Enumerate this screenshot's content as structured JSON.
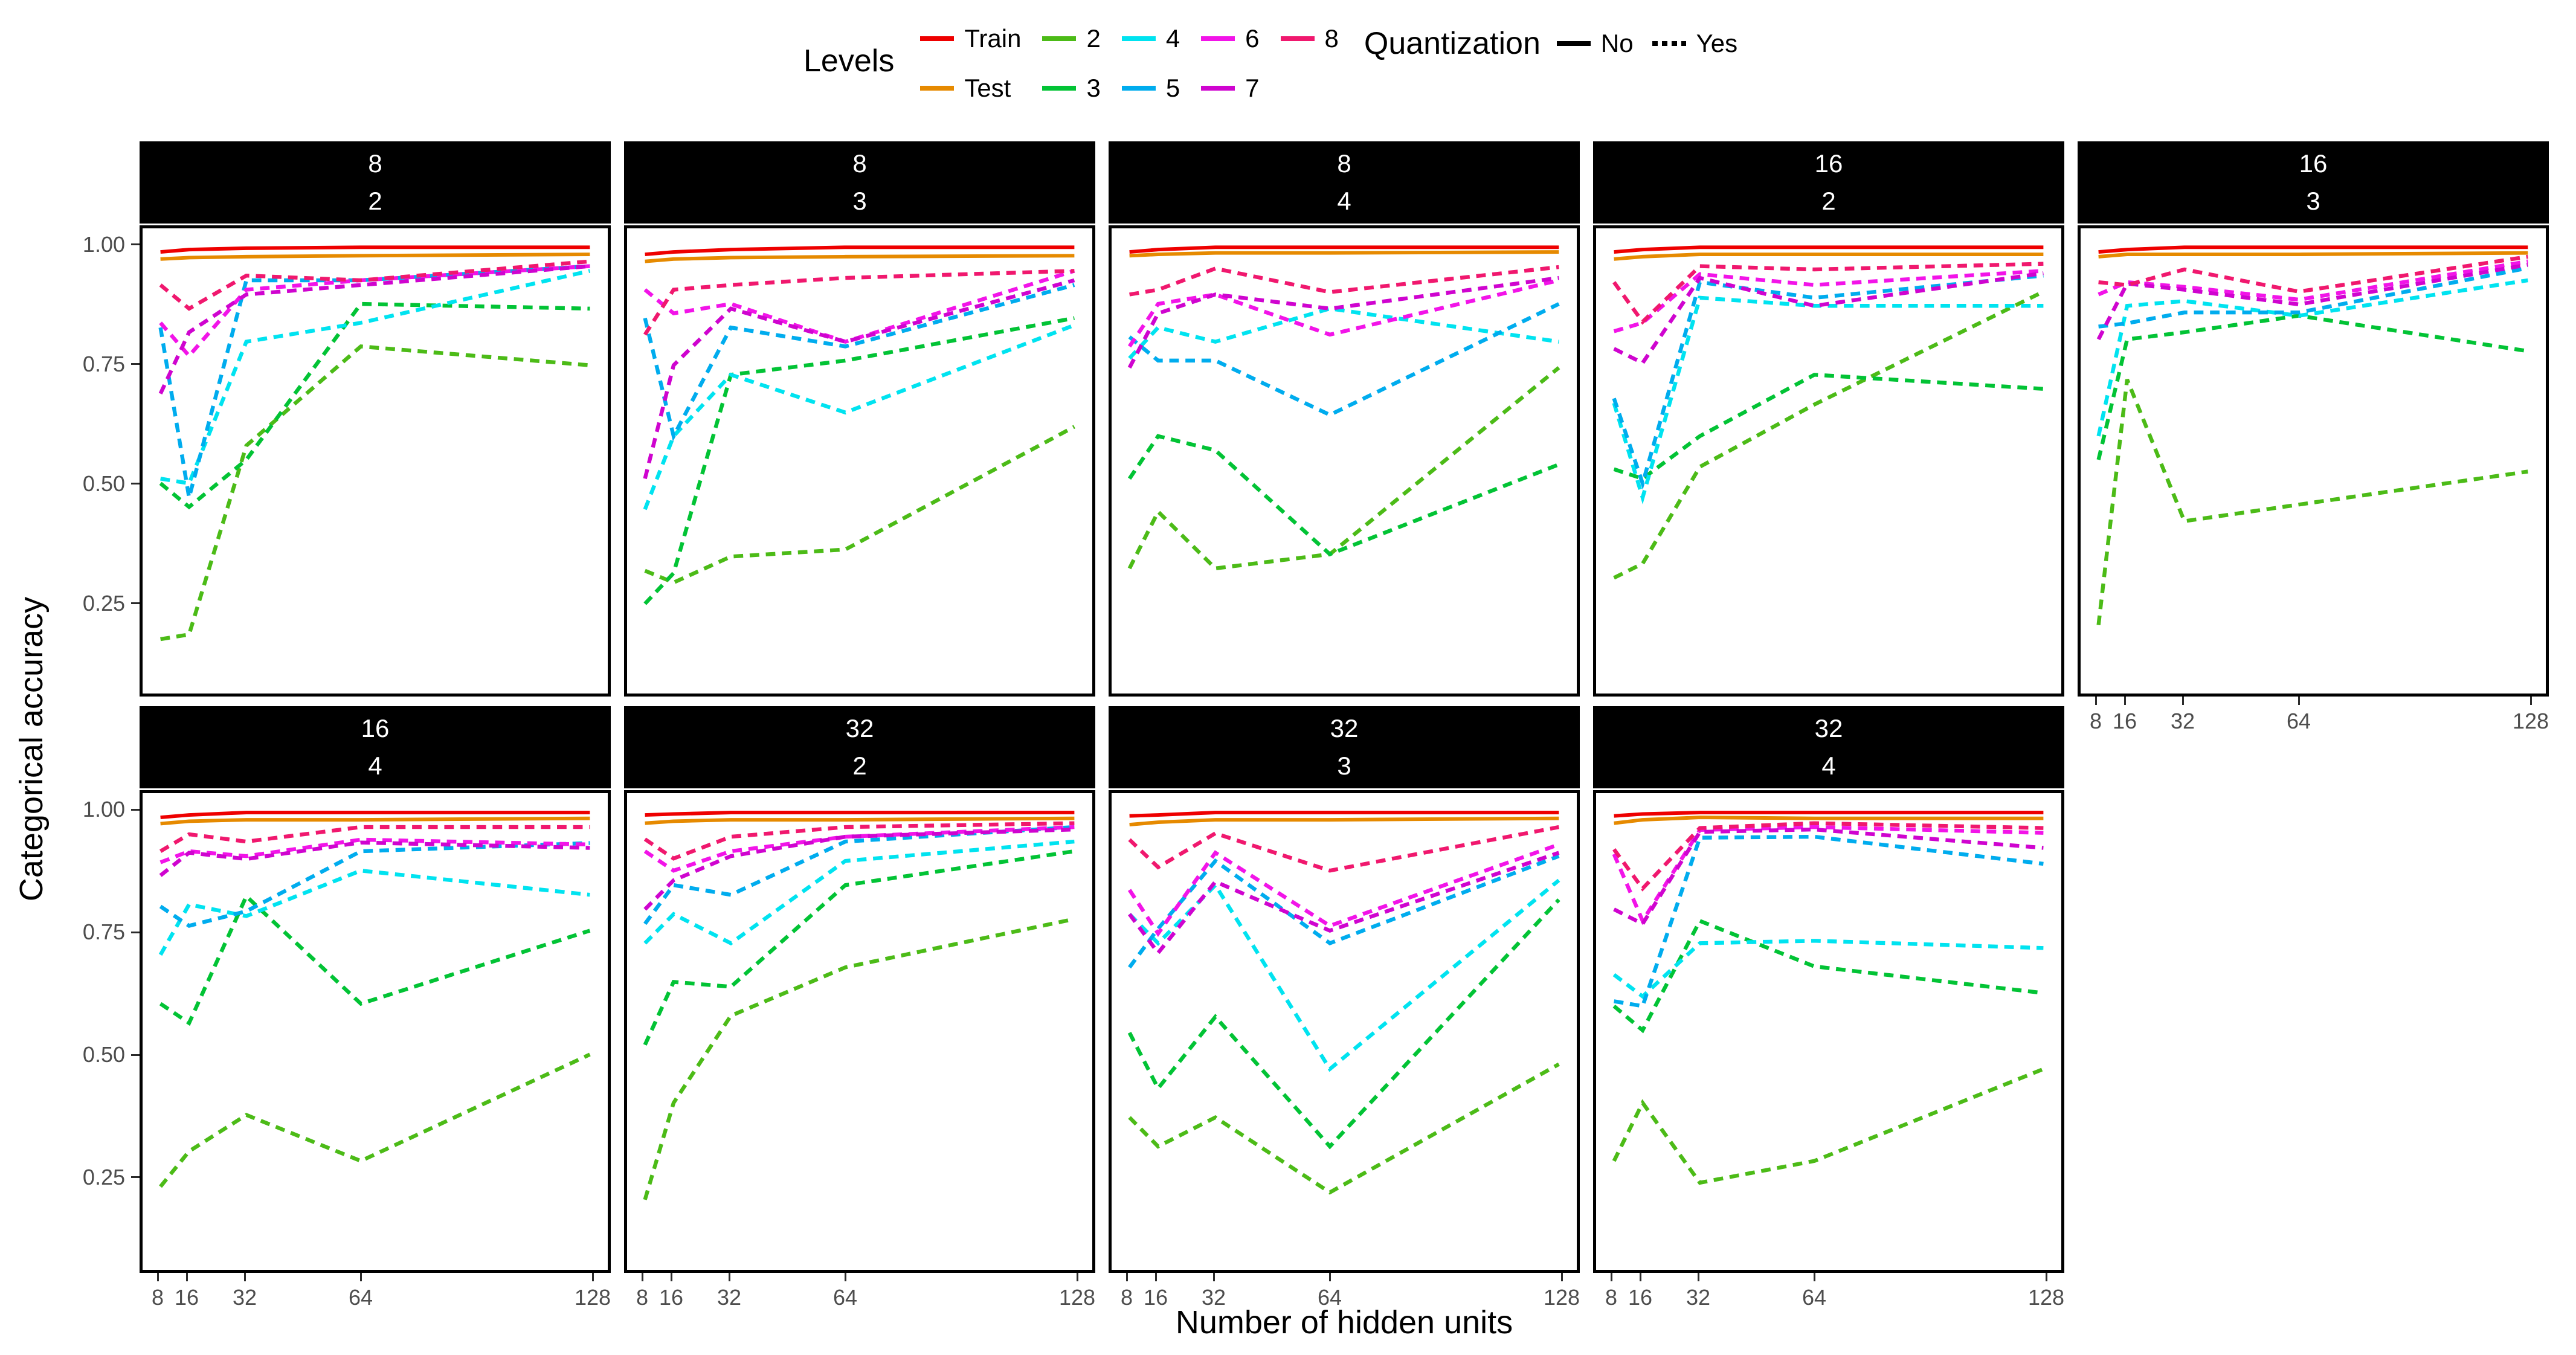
{
  "legend": {
    "levels_title": "Levels",
    "quant_title": "Quantization",
    "level_items": [
      {
        "label": "Train",
        "color": "#EE0000"
      },
      {
        "label": "Test",
        "color": "#E68A00"
      },
      {
        "label": "2",
        "color": "#4CBB17"
      },
      {
        "label": "3",
        "color": "#02C335"
      },
      {
        "label": "4",
        "color": "#00E3F0"
      },
      {
        "label": "5",
        "color": "#00ACEE"
      },
      {
        "label": "6",
        "color": "#F214E8"
      },
      {
        "label": "7",
        "color": "#CF04CF"
      },
      {
        "label": "8",
        "color": "#F0186E"
      }
    ],
    "quant_items": [
      {
        "label": "No",
        "dash": "solid"
      },
      {
        "label": "Yes",
        "dash": "dashed"
      }
    ]
  },
  "axes": {
    "x_title": "Number of hidden units",
    "y_title": "Categorical accuracy",
    "y_tick_labels": [
      "1.00",
      "0.75",
      "0.50",
      "0.25"
    ]
  },
  "chart_data": {
    "type": "line",
    "x_scale": "linear",
    "x": [
      8,
      16,
      32,
      64,
      128
    ],
    "x_ticks": [
      8,
      16,
      32,
      64,
      128
    ],
    "y_ticks": [
      1.0,
      0.75,
      0.5,
      0.25
    ],
    "xlim": [
      3,
      133
    ],
    "ylim": [
      0.055,
      1.04
    ],
    "grid": false,
    "legend_position": "top",
    "colors": {
      "Train": "#EE0000",
      "Test": "#E68A00",
      "2": "#4CBB17",
      "3": "#02C335",
      "4": "#00E3F0",
      "5": "#00ACEE",
      "6": "#F214E8",
      "7": "#CF04CF",
      "8": "#F0186E"
    },
    "quantized": {
      "Train": "No",
      "Test": "No",
      "2": "Yes",
      "3": "Yes",
      "4": "Yes",
      "5": "Yes",
      "6": "Yes",
      "7": "Yes",
      "8": "Yes"
    },
    "facets": [
      {
        "strip": [
          "8",
          "2"
        ],
        "series": {
          "Train": [
            0.99,
            0.995,
            0.998,
            1.0,
            1.0
          ],
          "Test": [
            0.975,
            0.978,
            0.98,
            0.982,
            0.985
          ],
          "2": [
            0.17,
            0.18,
            0.58,
            0.79,
            0.75
          ],
          "3": [
            0.5,
            0.45,
            0.55,
            0.88,
            0.87
          ],
          "4": [
            0.51,
            0.5,
            0.8,
            0.84,
            0.95
          ],
          "5": [
            0.83,
            0.47,
            0.93,
            0.93,
            0.96
          ],
          "6": [
            0.84,
            0.77,
            0.91,
            0.93,
            0.96
          ],
          "7": [
            0.69,
            0.82,
            0.9,
            0.92,
            0.96
          ],
          "8": [
            0.92,
            0.87,
            0.94,
            0.93,
            0.97
          ]
        }
      },
      {
        "strip": [
          "8",
          "3"
        ],
        "series": {
          "Train": [
            0.985,
            0.99,
            0.995,
            1.0,
            1.0
          ],
          "Test": [
            0.97,
            0.975,
            0.978,
            0.98,
            0.982
          ],
          "2": [
            0.315,
            0.29,
            0.345,
            0.36,
            0.62
          ],
          "3": [
            0.245,
            0.31,
            0.73,
            0.76,
            0.85
          ],
          "4": [
            0.445,
            0.6,
            0.73,
            0.65,
            0.835
          ],
          "5": [
            0.85,
            0.6,
            0.83,
            0.79,
            0.92
          ],
          "6": [
            0.91,
            0.86,
            0.88,
            0.8,
            0.95
          ],
          "7": [
            0.51,
            0.75,
            0.87,
            0.8,
            0.93
          ],
          "8": [
            0.815,
            0.91,
            0.92,
            0.935,
            0.95
          ]
        }
      },
      {
        "strip": [
          "8",
          "4"
        ],
        "series": {
          "Train": [
            0.99,
            0.995,
            1.0,
            1.0,
            1.0
          ],
          "Test": [
            0.982,
            0.985,
            0.988,
            0.988,
            0.99
          ],
          "2": [
            0.32,
            0.44,
            0.32,
            0.35,
            0.745
          ],
          "3": [
            0.51,
            0.6,
            0.57,
            0.35,
            0.54
          ],
          "4": [
            0.765,
            0.83,
            0.8,
            0.87,
            0.8
          ],
          "5": [
            0.81,
            0.76,
            0.76,
            0.645,
            0.88
          ],
          "6": [
            0.79,
            0.88,
            0.9,
            0.815,
            0.93
          ],
          "7": [
            0.745,
            0.86,
            0.9,
            0.87,
            0.935
          ],
          "8": [
            0.9,
            0.91,
            0.955,
            0.905,
            0.958
          ]
        }
      },
      {
        "strip": [
          "16",
          "2"
        ],
        "series": {
          "Train": [
            0.99,
            0.995,
            1.0,
            1.0,
            1.0
          ],
          "Test": [
            0.975,
            0.98,
            0.985,
            0.985,
            0.985
          ],
          "2": [
            0.3,
            0.33,
            0.535,
            0.667,
            0.906
          ],
          "3": [
            0.53,
            0.51,
            0.6,
            0.73,
            0.7
          ],
          "4": [
            0.67,
            0.47,
            0.893,
            0.876,
            0.876
          ],
          "5": [
            0.68,
            0.5,
            0.926,
            0.893,
            0.94
          ],
          "6": [
            0.822,
            0.84,
            0.943,
            0.92,
            0.95
          ],
          "7": [
            0.785,
            0.755,
            0.935,
            0.876,
            0.945
          ],
          "8": [
            0.926,
            0.842,
            0.96,
            0.953,
            0.965
          ]
        }
      },
      {
        "strip": [
          "16",
          "3"
        ],
        "series": {
          "Train": [
            0.99,
            0.995,
            1.0,
            1.0,
            1.0
          ],
          "Test": [
            0.98,
            0.985,
            0.985,
            0.985,
            0.988
          ],
          "2": [
            0.2,
            0.72,
            0.42,
            0.455,
            0.525
          ],
          "3": [
            0.55,
            0.805,
            0.82,
            0.855,
            0.78
          ],
          "4": [
            0.6,
            0.876,
            0.886,
            0.855,
            0.93
          ],
          "5": [
            0.832,
            0.839,
            0.862,
            0.862,
            0.956
          ],
          "6": [
            0.9,
            0.926,
            0.916,
            0.889,
            0.97
          ],
          "7": [
            0.805,
            0.923,
            0.91,
            0.879,
            0.963
          ],
          "8": [
            0.926,
            0.92,
            0.953,
            0.906,
            0.98
          ]
        }
      },
      {
        "strip": [
          "16",
          "4"
        ],
        "series": {
          "Train": [
            0.99,
            0.995,
            1.0,
            1.0,
            1.0
          ],
          "Test": [
            0.977,
            0.982,
            0.985,
            0.985,
            0.988
          ],
          "2": [
            0.227,
            0.3,
            0.375,
            0.28,
            0.5
          ],
          "3": [
            0.605,
            0.565,
            0.827,
            0.605,
            0.756
          ],
          "4": [
            0.706,
            0.81,
            0.786,
            0.88,
            0.83
          ],
          "5": [
            0.806,
            0.766,
            0.796,
            0.92,
            0.937
          ],
          "6": [
            0.897,
            0.92,
            0.91,
            0.944,
            0.934
          ],
          "7": [
            0.87,
            0.917,
            0.904,
            0.938,
            0.927
          ],
          "8": [
            0.92,
            0.955,
            0.94,
            0.97,
            0.97
          ]
        }
      },
      {
        "strip": [
          "32",
          "2"
        ],
        "series": {
          "Train": [
            0.995,
            0.997,
            1.0,
            1.0,
            1.0
          ],
          "Test": [
            0.978,
            0.982,
            0.985,
            0.985,
            0.988
          ],
          "2": [
            0.2,
            0.4,
            0.58,
            0.68,
            0.78
          ],
          "3": [
            0.52,
            0.65,
            0.64,
            0.85,
            0.92
          ],
          "4": [
            0.73,
            0.79,
            0.73,
            0.9,
            0.94
          ],
          "5": [
            0.77,
            0.85,
            0.83,
            0.94,
            0.97
          ],
          "6": [
            0.92,
            0.88,
            0.92,
            0.95,
            0.97
          ],
          "7": [
            0.8,
            0.86,
            0.91,
            0.95,
            0.965
          ],
          "8": [
            0.945,
            0.905,
            0.95,
            0.97,
            0.978
          ]
        }
      },
      {
        "strip": [
          "32",
          "3"
        ],
        "series": {
          "Train": [
            0.993,
            0.995,
            1.0,
            1.0,
            1.0
          ],
          "Test": [
            0.975,
            0.98,
            0.985,
            0.985,
            0.988
          ],
          "2": [
            0.37,
            0.31,
            0.37,
            0.215,
            0.48
          ],
          "3": [
            0.545,
            0.43,
            0.578,
            0.31,
            0.82
          ],
          "4": [
            0.79,
            0.73,
            0.85,
            0.47,
            0.86
          ],
          "5": [
            0.68,
            0.76,
            0.9,
            0.73,
            0.91
          ],
          "6": [
            0.84,
            0.75,
            0.917,
            0.766,
            0.934
          ],
          "7": [
            0.79,
            0.71,
            0.857,
            0.756,
            0.917
          ],
          "8": [
            0.944,
            0.887,
            0.957,
            0.88,
            0.97
          ]
        }
      },
      {
        "strip": [
          "32",
          "4"
        ],
        "series": {
          "Train": [
            0.993,
            0.997,
            1.0,
            1.0,
            1.0
          ],
          "Test": [
            0.978,
            0.985,
            0.99,
            0.988,
            0.988
          ],
          "2": [
            0.28,
            0.4,
            0.235,
            0.28,
            0.47
          ],
          "3": [
            0.6,
            0.55,
            0.776,
            0.682,
            0.627
          ],
          "4": [
            0.665,
            0.62,
            0.73,
            0.735,
            0.72
          ],
          "5": [
            0.61,
            0.6,
            0.948,
            0.95,
            0.894
          ],
          "6": [
            0.914,
            0.776,
            0.964,
            0.97,
            0.958
          ],
          "7": [
            0.8,
            0.77,
            0.96,
            0.965,
            0.927
          ],
          "8": [
            0.924,
            0.843,
            0.968,
            0.978,
            0.968
          ]
        }
      }
    ]
  }
}
